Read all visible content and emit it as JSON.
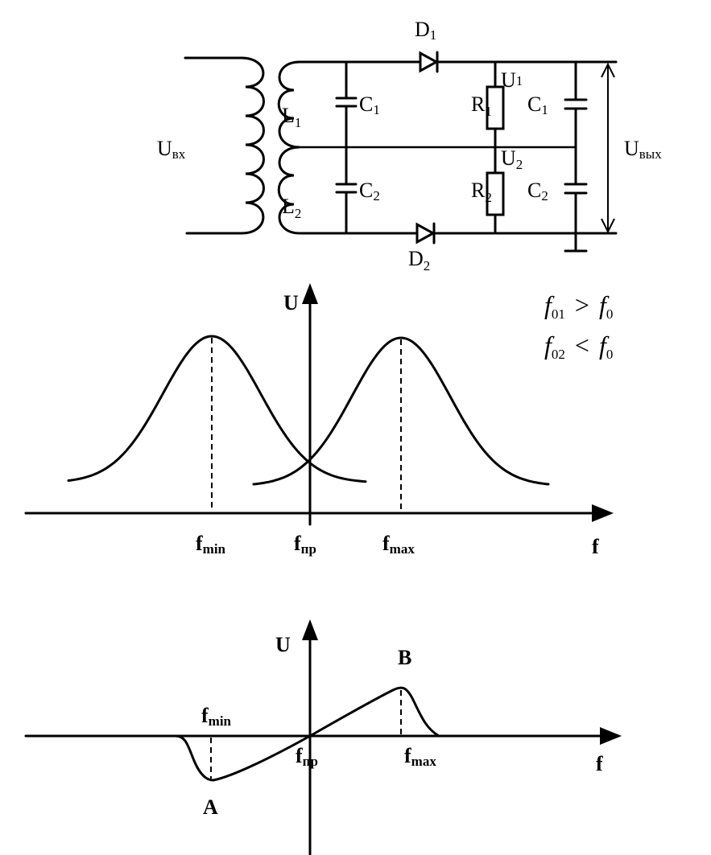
{
  "circuit": {
    "u_in": {
      "main": "U",
      "sub": "вх"
    },
    "u_out": {
      "main": "U",
      "sub": "вых"
    },
    "L1": {
      "main": "L",
      "sub": "1"
    },
    "L2": {
      "main": "L",
      "sub": "2"
    },
    "C1_left": {
      "main": "C",
      "sub": "1"
    },
    "C2_left": {
      "main": "C",
      "sub": "2"
    },
    "D1": {
      "main": "D",
      "sub": "1"
    },
    "D2": {
      "main": "D",
      "sub": "2"
    },
    "R1": {
      "main": "R",
      "sub": "1"
    },
    "R2": {
      "main": "R",
      "sub": "2"
    },
    "U1": {
      "main": "U",
      "sub": "1"
    },
    "U2": {
      "main": "U",
      "sub": "2"
    },
    "C1_right": {
      "main": "C",
      "sub": "1"
    },
    "C2_right": {
      "main": "C",
      "sub": "2"
    }
  },
  "conditions": [
    {
      "f": "f",
      "sub": "01",
      "op": ">",
      "f2": "f",
      "sub2": "0"
    },
    {
      "f": "f",
      "sub": "02",
      "op": "<",
      "f2": "f",
      "sub2": "0"
    }
  ],
  "graph1": {
    "y_axis": "U",
    "x_axis": "f",
    "fmin": {
      "main": "f",
      "sub": "min"
    },
    "fpr": {
      "main": "f",
      "sub": "пр"
    },
    "fmax": {
      "main": "f",
      "sub": "max"
    }
  },
  "graph2": {
    "y_axis": "U",
    "x_axis": "f",
    "fmin": {
      "main": "f",
      "sub": "min"
    },
    "fpr": {
      "main": "f",
      "sub": "пр"
    },
    "fmax": {
      "main": "f",
      "sub": "max"
    },
    "point_a": "A",
    "point_b": "B"
  }
}
